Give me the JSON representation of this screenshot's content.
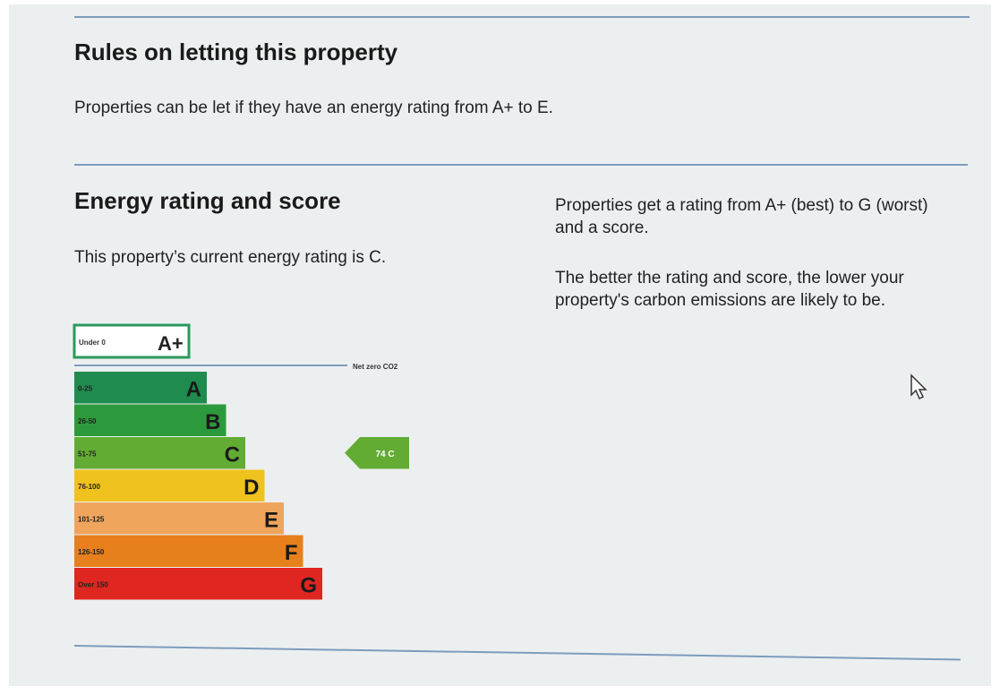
{
  "sections": [
    {
      "title": "Rules on letting this property",
      "text": "Properties can be let if they have an energy rating from A+ to E."
    },
    {
      "title": "Energy rating and score",
      "text": "This property’s current energy rating is C.",
      "side_text": [
        "Properties get a rating from A+ (best) to G (worst) and a score.",
        "The better the rating and score, the lower your property's carbon emissions are likely to be."
      ]
    }
  ],
  "rating_chart": {
    "top_band": {
      "range": "Under 0",
      "letter": "A+",
      "color": "#2a9a5a"
    },
    "net_zero_label": "Net zero CO2",
    "bands": [
      {
        "range": "0-25",
        "letter": "A",
        "color": "#1f8c4e"
      },
      {
        "range": "26-50",
        "letter": "B",
        "color": "#2c9a3c"
      },
      {
        "range": "51-75",
        "letter": "C",
        "color": "#62ac34"
      },
      {
        "range": "76-100",
        "letter": "D",
        "color": "#efc21e"
      },
      {
        "range": "101-125",
        "letter": "E",
        "color": "#efa55c"
      },
      {
        "range": "126-150",
        "letter": "F",
        "color": "#e6801c"
      },
      {
        "range": "Over 150",
        "letter": "G",
        "color": "#df2621"
      }
    ],
    "current": {
      "label": "74 C",
      "color": "#62ac34"
    }
  }
}
